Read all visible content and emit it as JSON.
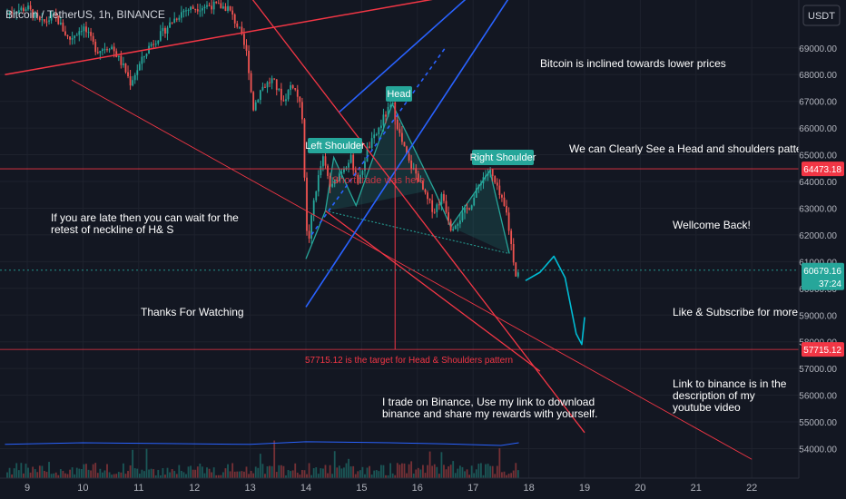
{
  "header": {
    "title": "Bitcoin / TetherUS, 1h, BINANCE",
    "currency": "USDT"
  },
  "colors": {
    "background": "#131722",
    "grid": "#1e222d",
    "up": "#26a69a",
    "down": "#ef5350",
    "trendline": "#f23645",
    "channel": "#2962ff",
    "pattern_fill": "#26a69a",
    "projection": "#00bcd4",
    "text": "#ffffff",
    "axis_text": "#b2b5be",
    "volume_ma": "#2962ff"
  },
  "annotations": {
    "bias": "Bitcoin is inclined towards lower prices",
    "pattern": "We can Clearly See a Head and shoulders pattern",
    "welcome": "Wellcome Back!",
    "late": "If you are late  then you can wait for the retest of neckline of H& S",
    "thanks": "Thanks For Watching",
    "like": "Like & Subscribe for more",
    "link": "Link to binance is in the description of my youtube video",
    "binance": "I trade on Binance, Use my link to download binance and share my rewards with yourself.",
    "short_trade": "Short trade was here",
    "target": "57715.12 is the target for Head & Shoulders pattern"
  },
  "pattern_labels": {
    "left_shoulder": "Left Shoulder",
    "head": "Head",
    "right_shoulder": "Right Shoulder"
  },
  "chart_data": {
    "type": "candlestick",
    "title": "Bitcoin / TetherUS, 1h, BINANCE",
    "x_ticks": [
      "9",
      "10",
      "11",
      "12",
      "13",
      "14",
      "15",
      "16",
      "17",
      "18",
      "19",
      "20",
      "21",
      "22"
    ],
    "y_ticks": [
      54000,
      55000,
      56000,
      57000,
      58000,
      59000,
      60000,
      61000,
      62000,
      63000,
      64000,
      65000,
      66000,
      67000,
      68000,
      69000
    ],
    "y_tick_labels": [
      "54000.00",
      "55000.00",
      "56000.00",
      "57000.00",
      "58000.00",
      "59000.00",
      "60000.00",
      "61000.00",
      "62000.00",
      "63000.00",
      "64000.00",
      "65000.00",
      "66000.00",
      "67000.00",
      "68000.00",
      "69000.00"
    ],
    "ylim": [
      53450,
      70700
    ],
    "xlim": [
      8.6,
      22.5
    ],
    "grid": true,
    "price_path": [
      [
        8.6,
        70300
      ],
      [
        9.0,
        70500
      ],
      [
        9.25,
        69900
      ],
      [
        9.5,
        70200
      ],
      [
        9.75,
        69300
      ],
      [
        10.0,
        69800
      ],
      [
        10.25,
        68900
      ],
      [
        10.5,
        69100
      ],
      [
        10.75,
        68200
      ],
      [
        10.85,
        67700
      ],
      [
        11.0,
        68300
      ],
      [
        11.2,
        69100
      ],
      [
        11.4,
        69500
      ],
      [
        11.6,
        70000
      ],
      [
        11.8,
        70400
      ],
      [
        12.0,
        70500
      ],
      [
        12.3,
        70600
      ],
      [
        12.6,
        70500
      ],
      [
        12.8,
        69700
      ],
      [
        12.95,
        68700
      ],
      [
        13.05,
        66700
      ],
      [
        13.2,
        67500
      ],
      [
        13.4,
        67800
      ],
      [
        13.6,
        67000
      ],
      [
        13.75,
        67700
      ],
      [
        13.85,
        67200
      ],
      [
        13.95,
        66300
      ],
      [
        14.0,
        62200
      ],
      [
        14.05,
        61800
      ],
      [
        14.15,
        63400
      ],
      [
        14.3,
        64900
      ],
      [
        14.45,
        63700
      ],
      [
        14.6,
        64300
      ],
      [
        14.8,
        64900
      ],
      [
        14.95,
        63900
      ],
      [
        15.1,
        65200
      ],
      [
        15.25,
        65700
      ],
      [
        15.4,
        66400
      ],
      [
        15.55,
        66900
      ],
      [
        15.7,
        65600
      ],
      [
        15.85,
        64700
      ],
      [
        16.0,
        64200
      ],
      [
        16.15,
        63400
      ],
      [
        16.3,
        62900
      ],
      [
        16.45,
        63500
      ],
      [
        16.6,
        62300
      ],
      [
        16.8,
        62700
      ],
      [
        17.0,
        63300
      ],
      [
        17.15,
        64100
      ],
      [
        17.3,
        64400
      ],
      [
        17.45,
        63600
      ],
      [
        17.6,
        62800
      ],
      [
        17.7,
        61400
      ],
      [
        17.77,
        60500
      ],
      [
        17.82,
        60680
      ]
    ],
    "volume_ma": [
      [
        8.6,
        54160
      ],
      [
        10.0,
        54220
      ],
      [
        11.5,
        54190
      ],
      [
        13.0,
        54160
      ],
      [
        14.0,
        54260
      ],
      [
        15.5,
        54220
      ],
      [
        16.5,
        54180
      ],
      [
        17.5,
        54120
      ],
      [
        17.82,
        54220
      ]
    ],
    "horizontal_levels": [
      {
        "value": 64473.18,
        "label": "64473.18"
      },
      {
        "value": 57715.12,
        "label": "57715.12"
      }
    ],
    "current_price": {
      "value": 60679.16,
      "label": "60679.16",
      "countdown": "37:24"
    },
    "pattern": {
      "left_shoulder": [
        14.5,
        64900
      ],
      "head": [
        15.55,
        66900
      ],
      "right_shoulder": [
        17.3,
        64400
      ],
      "neckline": [
        [
          14.35,
          62900
        ],
        [
          17.65,
          61300
        ]
      ],
      "shape": [
        [
          14.0,
          61100
        ],
        [
          14.35,
          62900
        ],
        [
          14.5,
          64900
        ],
        [
          14.9,
          63100
        ],
        [
          15.55,
          66900
        ],
        [
          16.3,
          63700
        ],
        [
          16.6,
          62300
        ],
        [
          17.3,
          64400
        ],
        [
          17.65,
          61300
        ]
      ]
    },
    "target": 57715.12,
    "projection": [
      [
        17.95,
        60300
      ],
      [
        18.2,
        60600
      ],
      [
        18.45,
        61200
      ],
      [
        18.65,
        60400
      ],
      [
        18.85,
        58300
      ],
      [
        18.95,
        57900
      ],
      [
        19.0,
        58900
      ]
    ],
    "trendlines": {
      "red_rising": [
        [
          8.6,
          68000
        ],
        [
          19.5,
          72000
        ]
      ],
      "red_desc_steep": [
        [
          12.9,
          71200
        ],
        [
          19.0,
          54600
        ]
      ],
      "red_desc_long": [
        [
          9.8,
          67800
        ],
        [
          22.0,
          53600
        ]
      ],
      "red_desc_neck": [
        [
          14.35,
          62900
        ],
        [
          18.2,
          56900
        ]
      ],
      "blue_channel_lower": [
        [
          14.0,
          59300
        ],
        [
          18.0,
          72000
        ]
      ],
      "blue_channel_upper": [
        [
          14.6,
          66600
        ],
        [
          17.5,
          72000
        ]
      ],
      "blue_dashed_mid": [
        [
          14.1,
          62000
        ],
        [
          16.5,
          69000
        ]
      ]
    },
    "vertical_lines": [
      15.6
    ]
  }
}
